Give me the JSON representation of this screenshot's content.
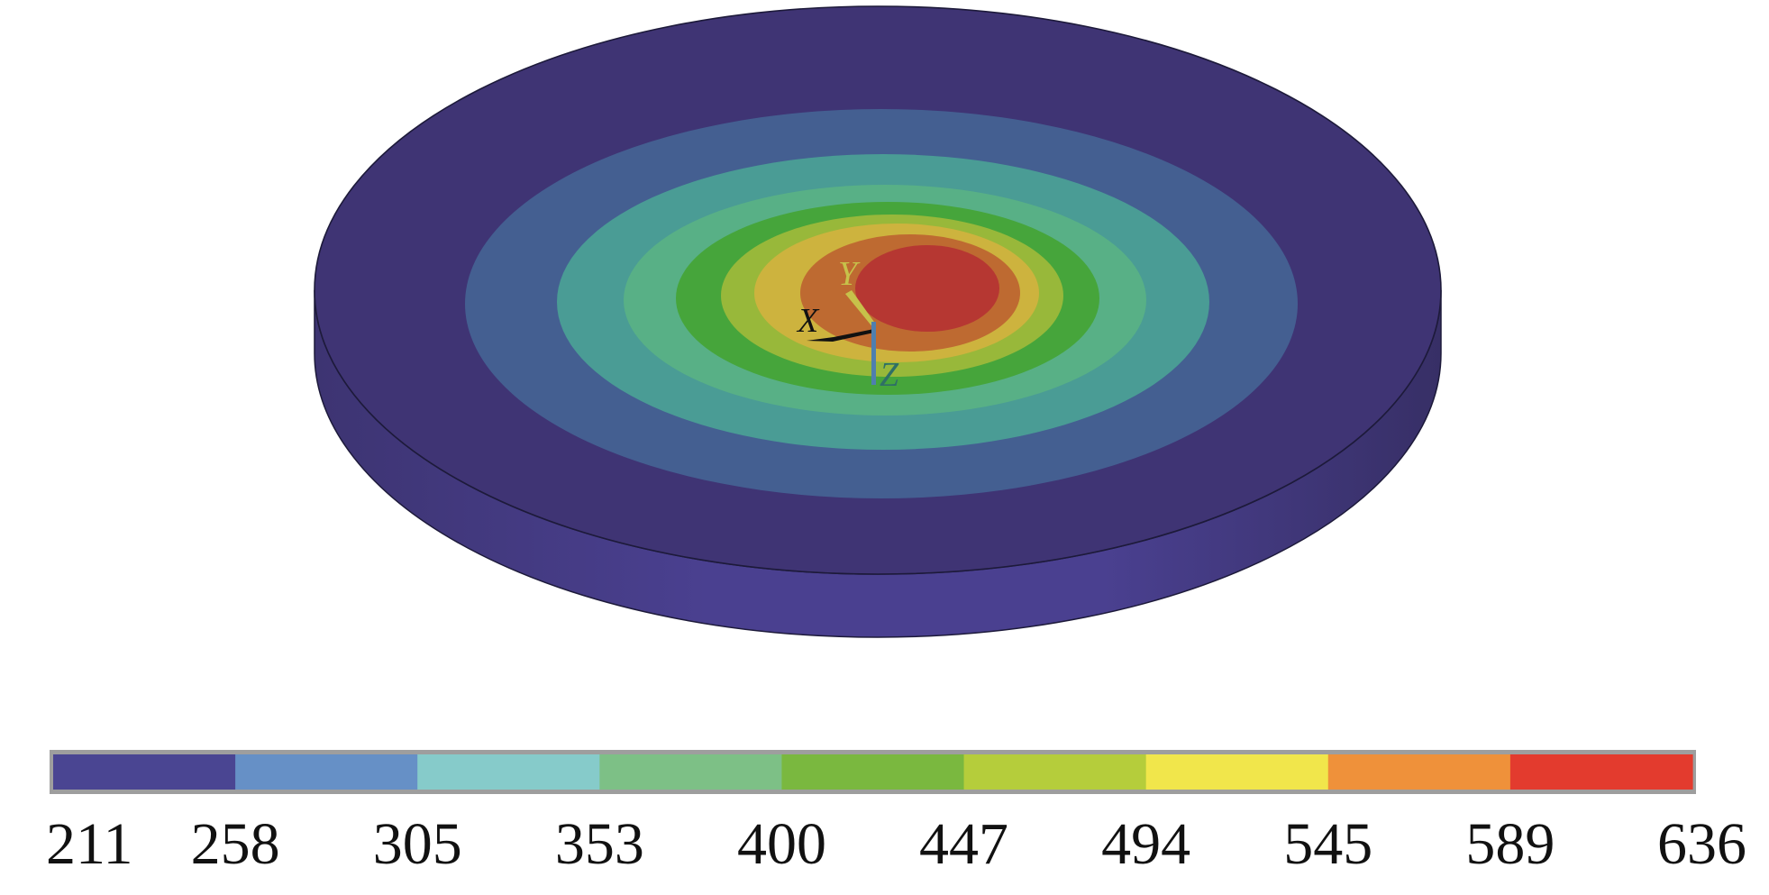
{
  "contour_plot": {
    "colorbar": {
      "ticks": [
        "211",
        "258",
        "305",
        "353",
        "400",
        "447",
        "494",
        "545",
        "589",
        "636"
      ],
      "band_colors": [
        "#4a4592",
        "#6690c6",
        "#86cbca",
        "#7dc086",
        "#7ab83f",
        "#b5cd3b",
        "#f1e64b",
        "#ef913a",
        "#e33b2e"
      ]
    },
    "contour_levels": [
      {
        "color": "#3f3474"
      },
      {
        "color": "#445f91"
      },
      {
        "color": "#4a9c95"
      },
      {
        "color": "#58b086"
      },
      {
        "color": "#46a53b"
      },
      {
        "color": "#98b83a"
      },
      {
        "color": "#cdb33e"
      },
      {
        "color": "#be6a31"
      },
      {
        "color": "#b63732"
      }
    ],
    "disc": {
      "side_color": "#493f86",
      "edge_color": "#1d1a3a"
    },
    "triad": {
      "x_label": "X",
      "y_label": "Y",
      "z_label": "Z",
      "x_color": "#111111",
      "y_color": "#c7c14a",
      "z_color": "#2f6f66"
    }
  }
}
